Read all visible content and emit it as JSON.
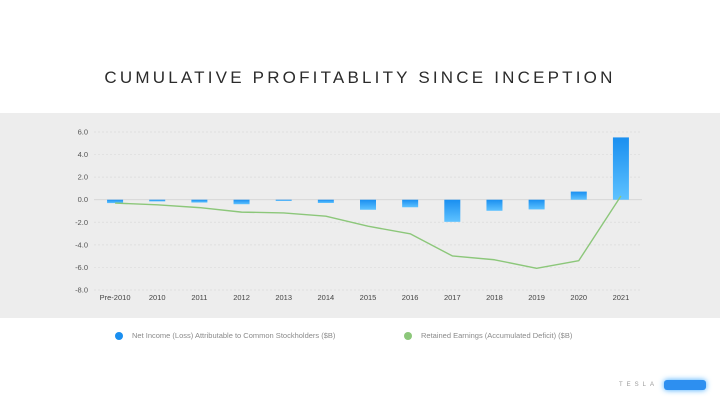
{
  "title": "CUMULATIVE PROFITABLITY SINCE INCEPTION",
  "legend": {
    "net_income": "Net Income (Loss) Attributable to Common Stockholders ($B)",
    "retained": "Retained Earnings (Accumulated Deficit) ($B)"
  },
  "brand": {
    "wordmark": "TESLA",
    "logo_icon": "tesla-logo-icon"
  },
  "colors": {
    "bar_top": "#1a8ff0",
    "bar_bottom": "#5ec2ff",
    "line": "#8cc77a",
    "band": "#ededed"
  },
  "chart_data": {
    "type": "bar",
    "categories": [
      "Pre-2010",
      "2010",
      "2011",
      "2012",
      "2013",
      "2014",
      "2015",
      "2016",
      "2017",
      "2018",
      "2019",
      "2020",
      "2021"
    ],
    "ylim": [
      -8.0,
      6.0
    ],
    "yticks": [
      "6.0",
      "4.0",
      "2.0",
      "0.0",
      "-2.0",
      "-4.0",
      "-6.0",
      "-8.0"
    ],
    "grid": true,
    "legend_position": "bottom",
    "series": [
      {
        "name": "Net Income (Loss) Attributable to Common Stockholders ($B)",
        "type": "bar",
        "values": [
          -0.3,
          -0.15,
          -0.25,
          -0.4,
          -0.07,
          -0.29,
          -0.89,
          -0.67,
          -1.96,
          -0.98,
          -0.86,
          0.72,
          5.52
        ]
      },
      {
        "name": "Retained Earnings (Accumulated Deficit) ($B)",
        "type": "line",
        "values": [
          -0.3,
          -0.45,
          -0.7,
          -1.1,
          -1.17,
          -1.46,
          -2.35,
          -3.02,
          -4.98,
          -5.32,
          -6.08,
          -5.4,
          0.33
        ]
      }
    ]
  }
}
